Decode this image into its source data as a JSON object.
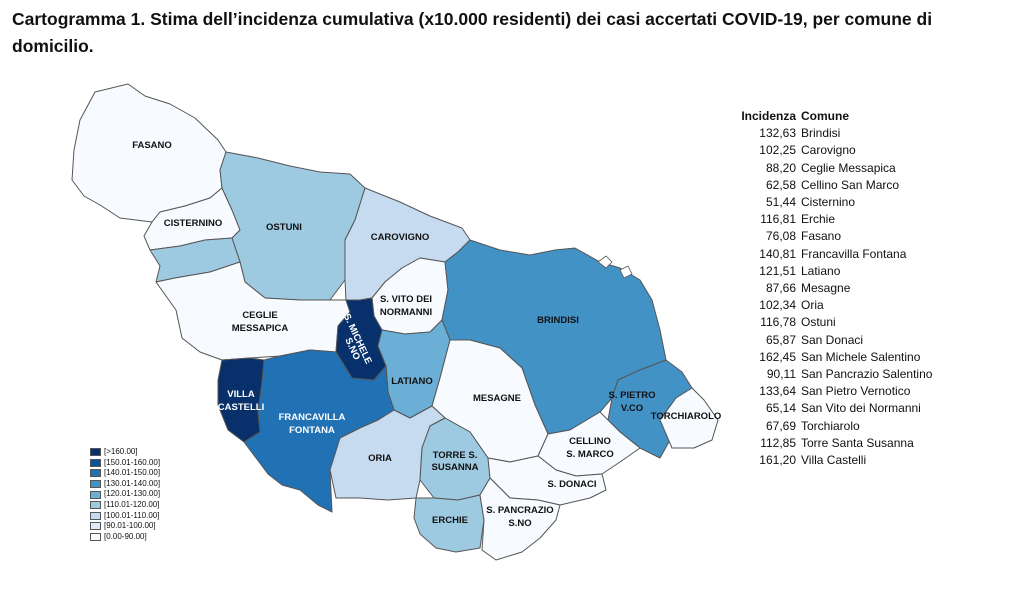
{
  "title": "Cartogramma 1. Stima dell’incidenza cumulativa (x10.000 residenti) dei casi accertati COVID-19, per comune di domicilio.",
  "map": {
    "region_labels": {
      "fasano": "FASANO",
      "cisternino": "CISTERNINO",
      "ostuni": "OSTUNI",
      "carovigno": "CAROVIGNO",
      "ceglie_1": "CEGLIE",
      "ceglie_2": "MESSAPICA",
      "svito_1": "S. VITO DEI",
      "svito_2": "NORMANNI",
      "smichele_1": "S. MICHELE",
      "smichele_2": "S.NO",
      "brindisi": "BRINDISI",
      "latiano": "LATIANO",
      "villa_1": "VILLA",
      "villa_2": "CASTELLI",
      "francavilla_1": "FRANCAVILLA",
      "francavilla_2": "FONTANA",
      "mesagne": "MESAGNE",
      "spietro_1": "S. PIETRO",
      "spietro_2": "V.CO",
      "torchiarolo": "TORCHIAROLO",
      "cellino_1": "CELLINO",
      "cellino_2": "S. MARCO",
      "oria": "ORIA",
      "torre_1": "TORRE S.",
      "torre_2": "SUSANNA",
      "sdonaci": "S. DONACI",
      "erchie": "ERCHIE",
      "spancrazio_1": "S. PANCRAZIO",
      "spancrazio_2": "S.NO"
    },
    "colors": {
      "c0": "#f7fbff",
      "c1": "#deebf7",
      "c2": "#c6dbef",
      "c3": "#9ecae1",
      "c4": "#6baed6",
      "c5": "#4292c6",
      "c6": "#2171b5",
      "c7": "#08519c",
      "c8": "#08306b"
    },
    "legend": [
      {
        "label": "[>160.00]",
        "color": "#08306b"
      },
      {
        "label": "[150.01-160.00]",
        "color": "#08519c"
      },
      {
        "label": "[140.01-150.00]",
        "color": "#2171b5"
      },
      {
        "label": "[130.01-140.00]",
        "color": "#4292c6"
      },
      {
        "label": "[120.01-130.00]",
        "color": "#6baed6"
      },
      {
        "label": "[110.01-120.00]",
        "color": "#9ecae1"
      },
      {
        "label": "[100.01-110.00]",
        "color": "#c6dbef"
      },
      {
        "label": "[90.01-100.00]",
        "color": "#deebf7"
      },
      {
        "label": "[0.00-90.00]",
        "color": "#f7fbff"
      }
    ]
  },
  "table": {
    "header_incidenza": "Incidenza",
    "header_comune": "Comune",
    "rows": [
      {
        "incidenza": "132,63",
        "comune": "Brindisi"
      },
      {
        "incidenza": "102,25",
        "comune": "Carovigno"
      },
      {
        "incidenza": "88,20",
        "comune": "Ceglie Messapica"
      },
      {
        "incidenza": "62,58",
        "comune": "Cellino San Marco"
      },
      {
        "incidenza": "51,44",
        "comune": "Cisternino"
      },
      {
        "incidenza": "116,81",
        "comune": "Erchie"
      },
      {
        "incidenza": "76,08",
        "comune": "Fasano"
      },
      {
        "incidenza": "140,81",
        "comune": "Francavilla Fontana"
      },
      {
        "incidenza": "121,51",
        "comune": "Latiano"
      },
      {
        "incidenza": "87,66",
        "comune": "Mesagne"
      },
      {
        "incidenza": "102,34",
        "comune": "Oria"
      },
      {
        "incidenza": "116,78",
        "comune": "Ostuni"
      },
      {
        "incidenza": "65,87",
        "comune": "San Donaci"
      },
      {
        "incidenza": "162,45",
        "comune": "San Michele Salentino"
      },
      {
        "incidenza": "90,11",
        "comune": "San Pancrazio Salentino"
      },
      {
        "incidenza": "133,64",
        "comune": "San Pietro Vernotico"
      },
      {
        "incidenza": "65,14",
        "comune": "San Vito dei Normanni"
      },
      {
        "incidenza": "67,69",
        "comune": "Torchiarolo"
      },
      {
        "incidenza": "112,85",
        "comune": "Torre Santa Susanna"
      },
      {
        "incidenza": "161,20",
        "comune": "Villa Castelli"
      }
    ]
  }
}
